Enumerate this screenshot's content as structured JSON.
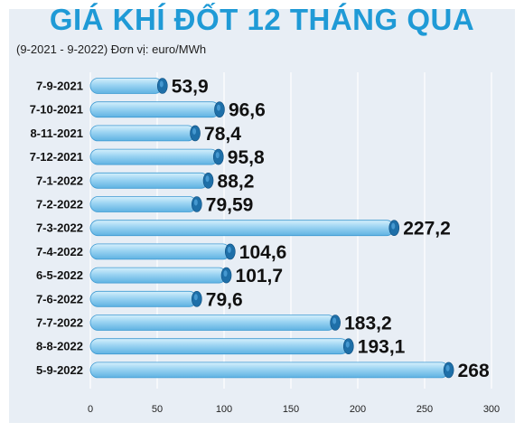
{
  "chart_data": {
    "type": "bar",
    "orientation": "horizontal",
    "title": "GIÁ KHÍ ĐỐT 12 THÁNG QUA",
    "subtitle": "(9-2021 - 9-2022) Đơn vị: euro/MWh",
    "categories": [
      "7-9-2021",
      "7-10-2021",
      "8-11-2021",
      "7-12-2021",
      "7-1-2022",
      "7-2-2022",
      "7-3-2022",
      "7-4-2022",
      "6-5-2022",
      "7-6-2022",
      "7-7-2022",
      "8-8-2022",
      "5-9-2022"
    ],
    "values": [
      53.9,
      96.6,
      78.4,
      95.8,
      88.2,
      79.59,
      227.2,
      104.6,
      101.7,
      79.6,
      183.2,
      193.1,
      268
    ],
    "value_labels": [
      "53,9",
      "96,6",
      "78,4",
      "95,8",
      "88,2",
      "79,59",
      "227,2",
      "104,6",
      "101,7",
      "79,6",
      "183,2",
      "193,1",
      "268"
    ],
    "x_ticks": [
      "0",
      "50",
      "100",
      "150",
      "200",
      "250",
      "300"
    ],
    "xlim": [
      0,
      300
    ],
    "grid": "vertical",
    "colors": {
      "title": "#1f9ad6",
      "bar": "#9ad3f2",
      "bar_end": "#1e6fa8",
      "background": "#e8eef5"
    }
  }
}
